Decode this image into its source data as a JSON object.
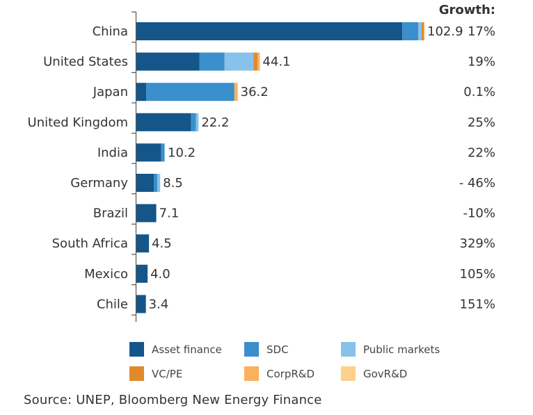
{
  "chart_data": {
    "type": "bar",
    "orientation": "horizontal",
    "stacked": true,
    "categories": [
      "China",
      "United States",
      "Japan",
      "United Kingdom",
      "India",
      "Germany",
      "Brazil",
      "South Africa",
      "Mexico",
      "Chile"
    ],
    "series": [
      {
        "name": "Asset finance",
        "color": "#14568a",
        "values": [
          95.0,
          22.5,
          3.5,
          19.5,
          8.8,
          6.3,
          7.1,
          4.5,
          4.0,
          3.4
        ]
      },
      {
        "name": "SDC",
        "color": "#3a8fcc",
        "values": [
          5.7,
          9.0,
          31.5,
          1.8,
          1.2,
          1.2,
          0.0,
          0.0,
          0.0,
          0.0
        ]
      },
      {
        "name": "Public markets",
        "color": "#88c1ea",
        "values": [
          1.2,
          10.3,
          0.0,
          0.9,
          0.2,
          1.0,
          0.0,
          0.0,
          0.0,
          0.0
        ]
      },
      {
        "name": "VC/PE",
        "color": "#e08a2c",
        "values": [
          0.8,
          1.5,
          0.0,
          0.0,
          0.0,
          0.0,
          0.0,
          0.0,
          0.0,
          0.0
        ]
      },
      {
        "name": "CorpR&D",
        "color": "#fbb05e",
        "values": [
          0.2,
          0.8,
          1.2,
          0.0,
          0.0,
          0.0,
          0.0,
          0.0,
          0.0,
          0.0
        ]
      },
      {
        "name": "GovR&D",
        "color": "#fdd08d",
        "values": [
          0.0,
          0.0,
          0.0,
          0.0,
          0.0,
          0.0,
          0.0,
          0.0,
          0.0,
          0.0
        ]
      }
    ],
    "totals": [
      "102.9",
      "44.1",
      "36.2",
      "22.2",
      "10.2",
      "8.5",
      "7.1",
      "4.5",
      "4.0",
      "3.4"
    ],
    "growth_header": "Growth:",
    "growth": [
      "17%",
      "19%",
      "0.1%",
      "25%",
      "22%",
      "- 46%",
      "-10%",
      "329%",
      "105%",
      "151%"
    ],
    "xlim": [
      0,
      102.9
    ],
    "legend_position": "bottom",
    "title": "",
    "xlabel": "",
    "ylabel": ""
  },
  "source": "Source: UNEP, Bloomberg New Energy Finance"
}
